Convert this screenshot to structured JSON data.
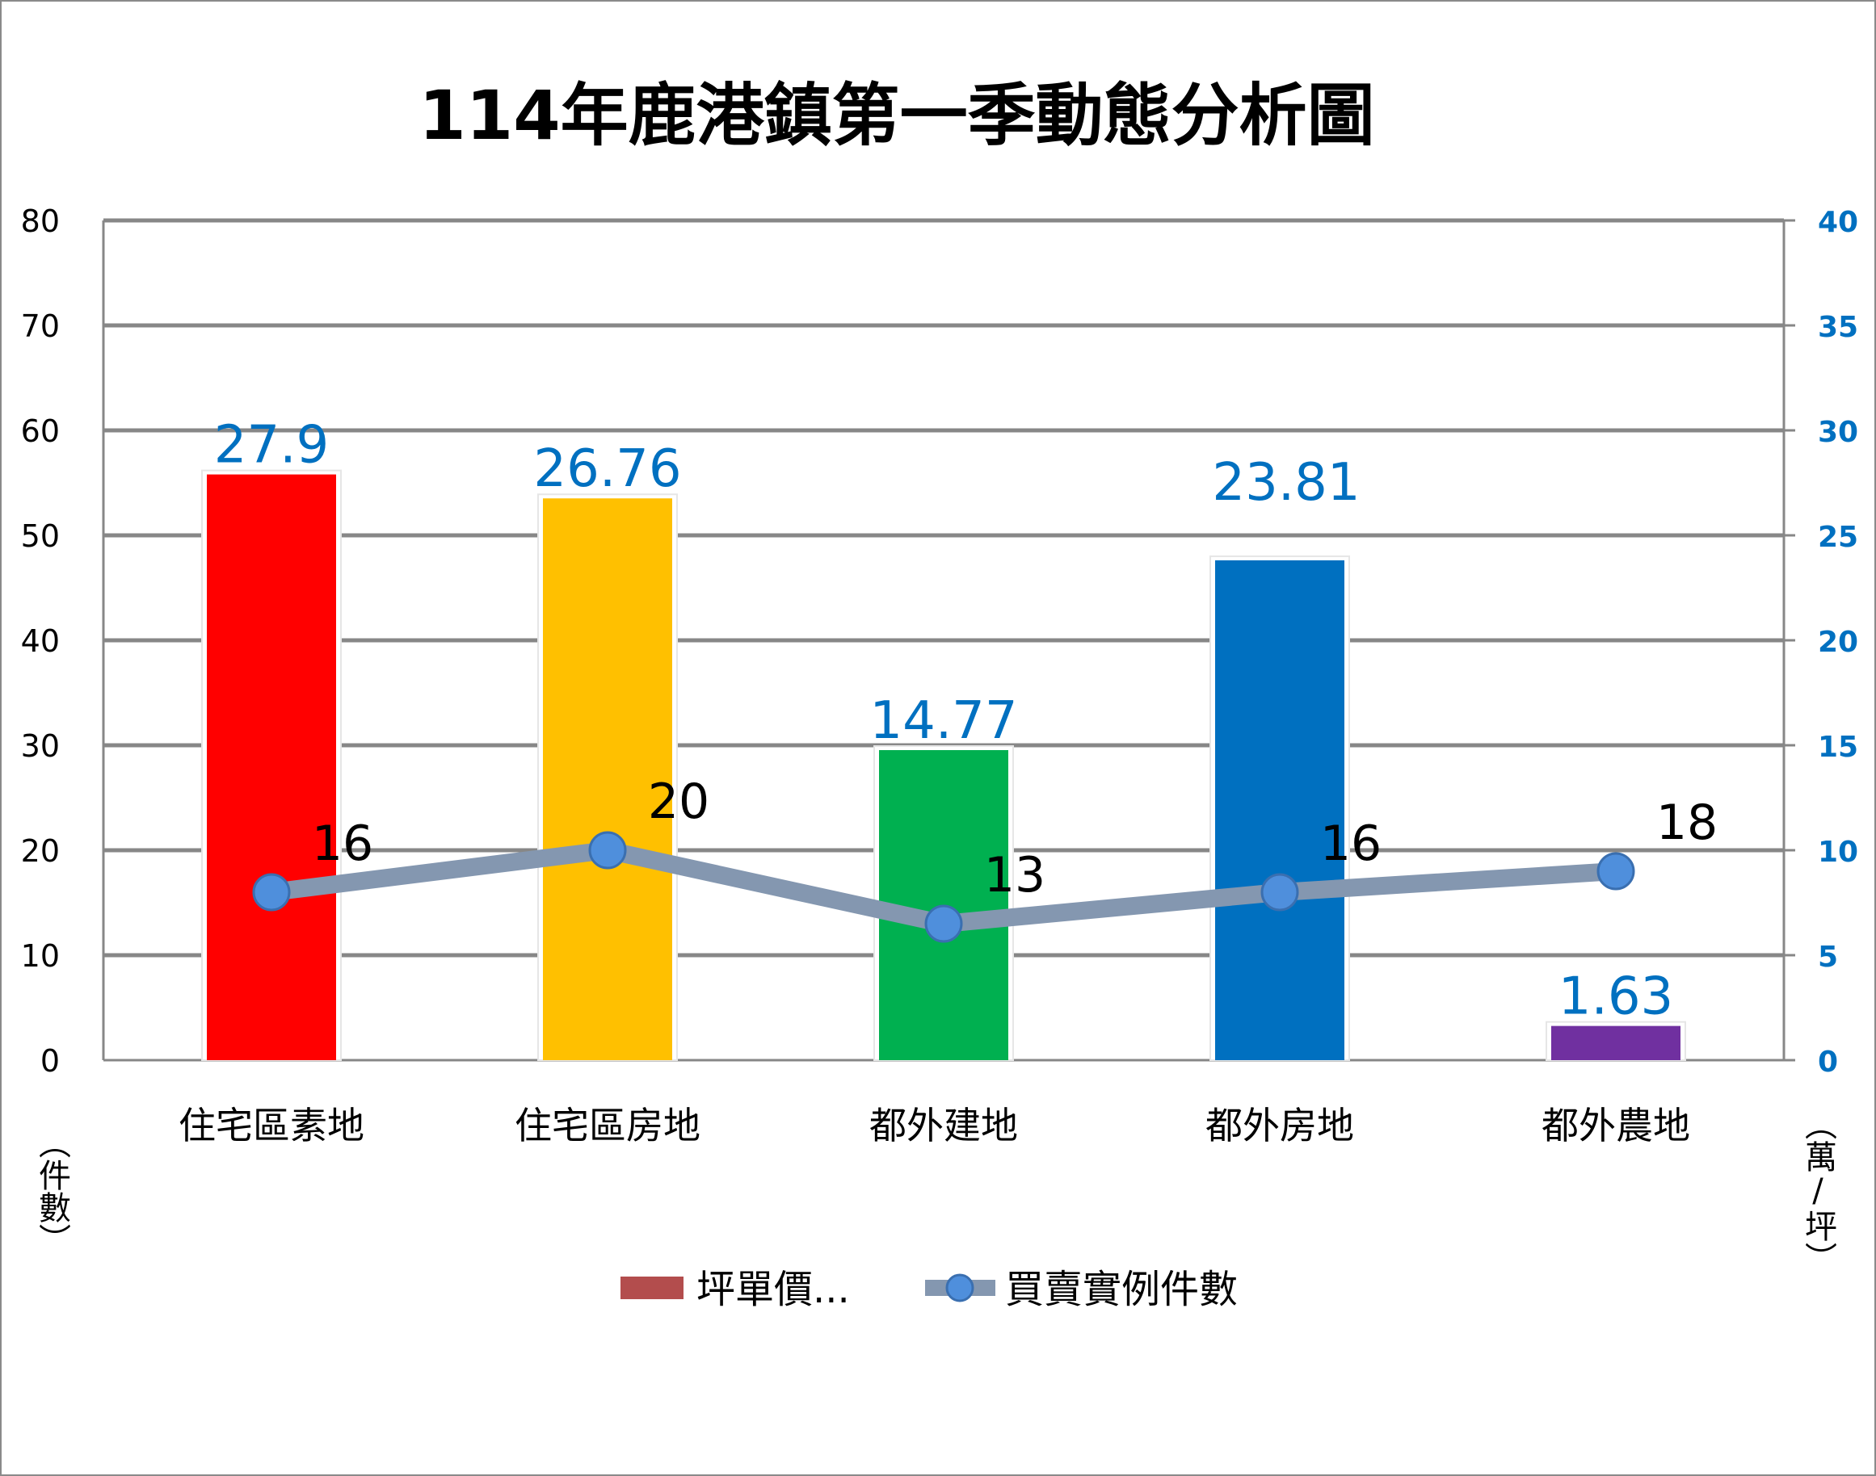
{
  "chart_data": {
    "type": "bar",
    "title": "114年鹿港鎮第一季動態分析圖",
    "categories": [
      "住宅區素地",
      "住宅區房地",
      "都外建地",
      "都外房地",
      "都外農地"
    ],
    "series": [
      {
        "name": "坪單價...",
        "type": "bar",
        "axis": "right",
        "values": [
          27.9,
          26.76,
          14.77,
          23.81,
          1.63
        ],
        "labels": [
          "27.9",
          "26.76",
          "14.77",
          "23.81",
          "1.63"
        ],
        "colors": [
          "#ff0000",
          "#ffc000",
          "#00b050",
          "#0070c0",
          "#7030a0"
        ],
        "legend_color": "#b34d4d",
        "label_color": "#0070c0"
      },
      {
        "name": "買賣實例件數",
        "type": "line",
        "axis": "left",
        "values": [
          16,
          20,
          13,
          16,
          18
        ],
        "labels": [
          "16",
          "20",
          "13",
          "16",
          "18"
        ],
        "line_color": "#8497b0",
        "marker_color": "#4f8fdc",
        "marker_stroke": "#3a6fb0",
        "label_color": "#000000"
      }
    ],
    "left_axis": {
      "label": "（件數）",
      "min": 0,
      "max": 80,
      "step": 10,
      "ticks": [
        "0",
        "10",
        "20",
        "30",
        "40",
        "50",
        "60",
        "70",
        "80"
      ]
    },
    "right_axis": {
      "label": "（萬/坪）",
      "min": 0,
      "max": 40,
      "step": 5,
      "ticks": [
        "0",
        "5",
        "10",
        "15",
        "20",
        "25",
        "30",
        "35",
        "40"
      ],
      "tick_color": "#0070c0"
    },
    "grid": true,
    "gridline_color": "#878787",
    "legend_position": "bottom"
  }
}
